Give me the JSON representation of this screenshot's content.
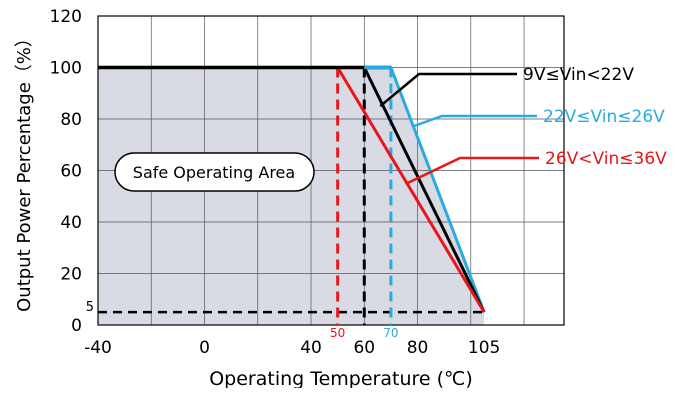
{
  "chart_data": {
    "type": "line",
    "xlabel": "Operating Temperature (℃)",
    "ylabel": "Output Power Percentage（%）",
    "xlim": [
      -40,
      135
    ],
    "ylim": [
      0,
      120
    ],
    "x_ticks": [
      -40,
      0,
      40,
      60,
      80,
      105
    ],
    "y_ticks": [
      0,
      20,
      40,
      60,
      80,
      100,
      120
    ],
    "grid": true,
    "safe_area_label": "Safe Operating Area",
    "series": [
      {
        "name": "9V≤Vin<22V",
        "color": "#000000",
        "points": [
          [
            -40,
            100
          ],
          [
            60,
            100
          ],
          [
            105,
            5
          ]
        ],
        "knee_marker_label": "",
        "label_anchor": [
          66,
          85
        ]
      },
      {
        "name": "22V≤Vin≤26V",
        "color": "#29abe2",
        "points": [
          [
            -40,
            100
          ],
          [
            70,
            100
          ],
          [
            105,
            5
          ]
        ],
        "knee_marker_label": "70",
        "label_anchor": [
          78,
          77
        ]
      },
      {
        "name": "26V<Vin≤36V",
        "color": "#e8161b",
        "points": [
          [
            -40,
            100
          ],
          [
            50,
            100
          ],
          [
            105,
            5
          ]
        ],
        "knee_marker_label": "50",
        "label_anchor": [
          76,
          55
        ]
      }
    ],
    "floor_level": 5,
    "floor_label": "5",
    "end_x": 105
  }
}
